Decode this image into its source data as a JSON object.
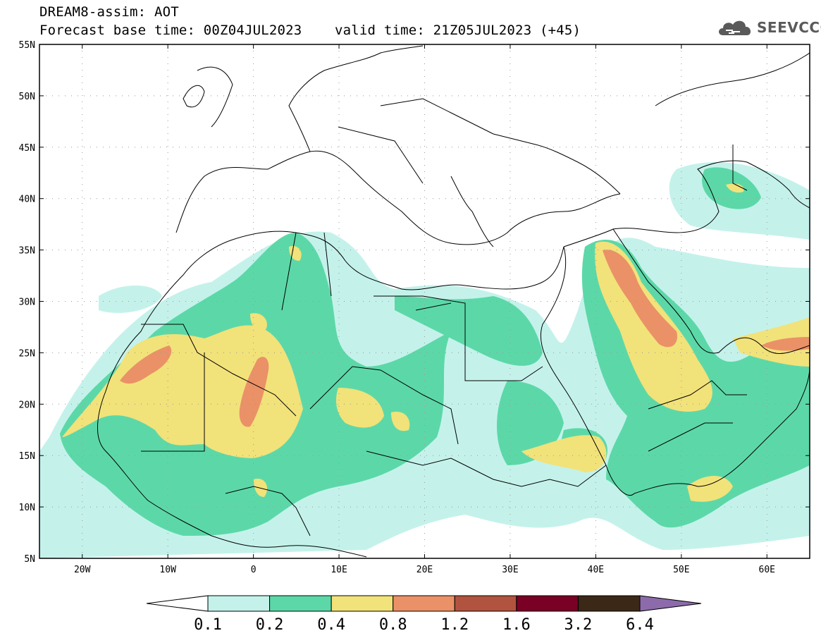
{
  "header": {
    "line1": "DREAM8-assim: AOT",
    "line2": "Forecast base time: 00Z04JUL2023    valid time: 21Z05JUL2023 (+45)"
  },
  "logo": {
    "text": "SEEVCCC",
    "icon": "cloud-icon",
    "color": "#5a5a5a"
  },
  "map": {
    "lon_range": [
      -25,
      65
    ],
    "lat_range": [
      5,
      55
    ],
    "lon_ticks": [
      {
        "value": -20,
        "label": "20W"
      },
      {
        "value": -10,
        "label": "10W"
      },
      {
        "value": 0,
        "label": "0"
      },
      {
        "value": 10,
        "label": "10E"
      },
      {
        "value": 20,
        "label": "20E"
      },
      {
        "value": 30,
        "label": "30E"
      },
      {
        "value": 40,
        "label": "40E"
      },
      {
        "value": 50,
        "label": "50E"
      },
      {
        "value": 60,
        "label": "60E"
      }
    ],
    "lat_ticks": [
      {
        "value": 55,
        "label": "55N"
      },
      {
        "value": 50,
        "label": "50N"
      },
      {
        "value": 45,
        "label": "45N"
      },
      {
        "value": 40,
        "label": "40N"
      },
      {
        "value": 35,
        "label": "35N"
      },
      {
        "value": 30,
        "label": "30N"
      },
      {
        "value": 25,
        "label": "25N"
      },
      {
        "value": 20,
        "label": "20N"
      },
      {
        "value": 15,
        "label": "15N"
      },
      {
        "value": 10,
        "label": "10N"
      },
      {
        "value": 5,
        "label": "5N"
      }
    ],
    "grid": true
  },
  "colorbar": {
    "colors": [
      "#c4f2eb",
      "#5cd8a8",
      "#f2e27a",
      "#ea9167",
      "#b1533e",
      "#7a0025",
      "#3b2817",
      "#8d6bab"
    ],
    "labels": [
      "0.1",
      "0.2",
      "0.4",
      "0.8",
      "1.2",
      "1.6",
      "3.2",
      "6.4"
    ]
  }
}
